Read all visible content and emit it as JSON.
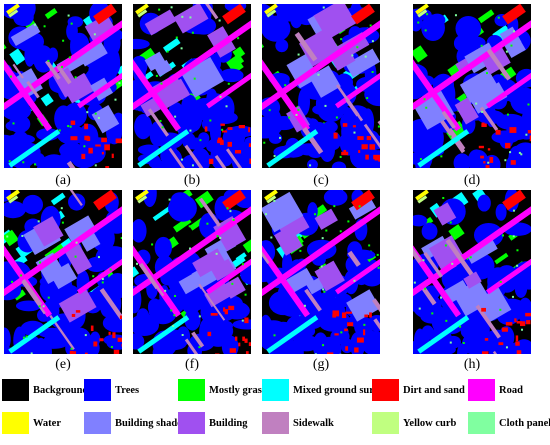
{
  "panels": [
    {
      "label": "(a)"
    },
    {
      "label": "(b)"
    },
    {
      "label": "(c)"
    },
    {
      "label": "(d)"
    },
    {
      "label": "(e)"
    },
    {
      "label": "(f)"
    },
    {
      "label": "(g)"
    },
    {
      "label": "(h)"
    }
  ],
  "legend": [
    {
      "name": "Background",
      "color": "#000000"
    },
    {
      "name": "Trees",
      "color": "#0000ff"
    },
    {
      "name": "Mostly grass",
      "color": "#00ff00"
    },
    {
      "name": "Mixed ground surface",
      "color": "#00ffff"
    },
    {
      "name": "Dirt and sand",
      "color": "#ff0000"
    },
    {
      "name": "Road",
      "color": "#ff00ff"
    },
    {
      "name": "Water",
      "color": "#ffff00"
    },
    {
      "name": "Building shadow",
      "color": "#8080ff"
    },
    {
      "name": "Building",
      "color": "#a050f0"
    },
    {
      "name": "Sidewalk",
      "color": "#c080c0"
    },
    {
      "name": "Yellow curb",
      "color": "#c0ff80"
    },
    {
      "name": "Cloth panels",
      "color": "#80ffa0"
    }
  ]
}
